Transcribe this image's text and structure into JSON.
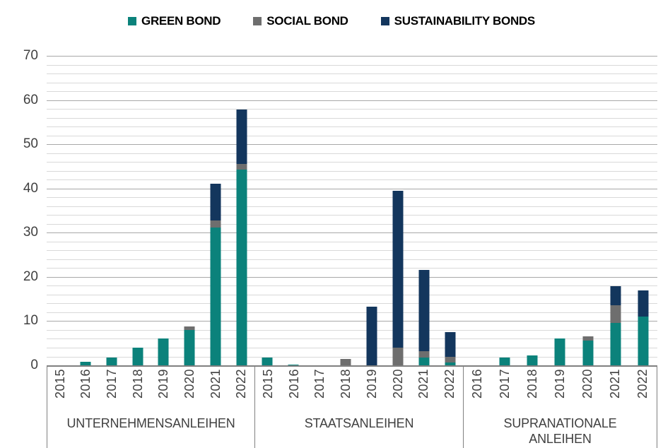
{
  "legend": [
    {
      "label": "GREEN BOND",
      "color": "#0b827b"
    },
    {
      "label": "SOCIAL BOND",
      "color": "#6e6e6e"
    },
    {
      "label": "SUSTAINABILITY BONDS",
      "color": "#13365d"
    }
  ],
  "colors": {
    "green_bond": "#0b827b",
    "social_bond": "#6e6e6e",
    "sustainability_bonds": "#13365d",
    "gridline_minor": "#d9d9d9",
    "gridline_major": "#a8a8a8",
    "axis_line": "#808080",
    "text": "#404040"
  },
  "chart_data": {
    "type": "bar",
    "subtype": "stacked",
    "ylim": [
      0,
      70
    ],
    "y_major_ticks": [
      0,
      10,
      20,
      30,
      40,
      50,
      60,
      70
    ],
    "y_minor_step": 2,
    "grid": true,
    "legend_position": "top",
    "groups": [
      {
        "label": "UNTERNEHMENSANLEIHEN",
        "categories": [
          "2015",
          "2016",
          "2017",
          "2018",
          "2019",
          "2020",
          "2021",
          "2022"
        ],
        "series": [
          {
            "name": "GREEN BOND",
            "values": [
              0,
              0.8,
              1.8,
              4.0,
              6.0,
              8.0,
              31.2,
              44.2
            ]
          },
          {
            "name": "SOCIAL BOND",
            "values": [
              0,
              0,
              0,
              0,
              0,
              0.8,
              1.6,
              1.4
            ]
          },
          {
            "name": "SUSTAINABILITY BONDS",
            "values": [
              0,
              0,
              0,
              0,
              0,
              0,
              8.2,
              12.2
            ]
          }
        ]
      },
      {
        "label": "STAATSANLEIHEN",
        "categories": [
          "2015",
          "2016",
          "2017",
          "2018",
          "2019",
          "2020",
          "2021",
          "2022"
        ],
        "series": [
          {
            "name": "GREEN BOND",
            "values": [
              1.7,
              0.2,
              0,
              0,
              0,
              0,
              1.7,
              0.7
            ]
          },
          {
            "name": "SOCIAL BOND",
            "values": [
              0,
              0,
              0,
              1.4,
              0,
              4.0,
              1.5,
              1.2
            ]
          },
          {
            "name": "SUSTAINABILITY BONDS",
            "values": [
              0,
              0,
              0,
              0,
              13.3,
              35.5,
              18.4,
              5.6
            ]
          }
        ]
      },
      {
        "label": "SUPRANATIONALE\nANLEIHEN",
        "categories": [
          "2016",
          "2017",
          "2018",
          "2019",
          "2020",
          "2021",
          "2022"
        ],
        "series": [
          {
            "name": "GREEN BOND",
            "values": [
              0,
              1.7,
              2.3,
              6.0,
              5.6,
              9.6,
              11.0
            ]
          },
          {
            "name": "SOCIAL BOND",
            "values": [
              0,
              0,
              0,
              0,
              0.9,
              4.0,
              0
            ]
          },
          {
            "name": "SUSTAINABILITY BONDS",
            "values": [
              0,
              0,
              0,
              0,
              0,
              4.3,
              5.9
            ]
          }
        ]
      }
    ]
  }
}
